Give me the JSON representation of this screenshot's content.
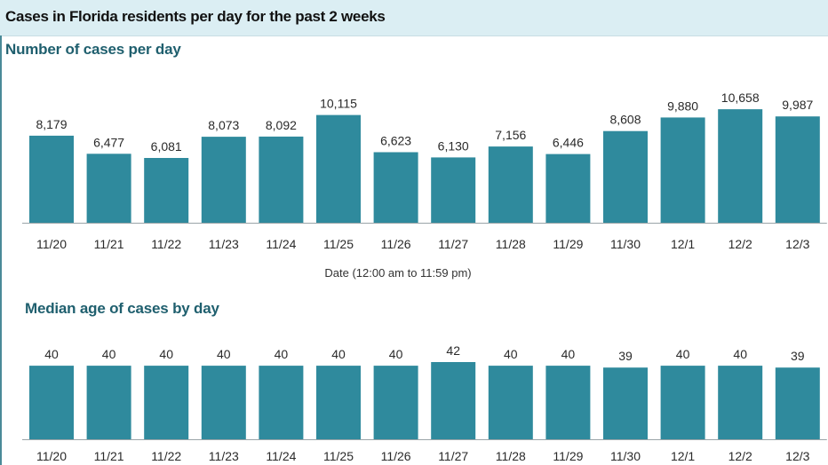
{
  "header": {
    "title": "Cases in Florida residents per day for the past 2 weeks"
  },
  "chart_data": [
    {
      "type": "bar",
      "title": "Number of cases per day",
      "xlabel": "Date (12:00 am to 11:59 pm)",
      "ylabel": "",
      "categories": [
        "11/20",
        "11/21",
        "11/22",
        "11/23",
        "11/24",
        "11/25",
        "11/26",
        "11/27",
        "11/28",
        "11/29",
        "11/30",
        "12/1",
        "12/2",
        "12/3"
      ],
      "value_labels": [
        "8,179",
        "6,477",
        "6,081",
        "8,073",
        "8,092",
        "10,115",
        "6,623",
        "6,130",
        "7,156",
        "6,446",
        "8,608",
        "9,880",
        "10,658",
        "9,987"
      ],
      "values": [
        8179,
        6477,
        6081,
        8073,
        8092,
        10115,
        6623,
        6130,
        7156,
        6446,
        8608,
        9880,
        10658,
        9987
      ],
      "ylim": [
        0,
        11000
      ],
      "grid": false,
      "color": "#2f8a9d"
    },
    {
      "type": "bar",
      "title": "Median age of cases by day",
      "xlabel": "",
      "ylabel": "",
      "categories": [
        "11/20",
        "11/21",
        "11/22",
        "11/23",
        "11/24",
        "11/25",
        "11/26",
        "11/27",
        "11/28",
        "11/29",
        "11/30",
        "12/1",
        "12/2",
        "12/3"
      ],
      "value_labels": [
        "40",
        "40",
        "40",
        "40",
        "40",
        "40",
        "40",
        "42",
        "40",
        "40",
        "39",
        "40",
        "40",
        "39"
      ],
      "values": [
        40,
        40,
        40,
        40,
        40,
        40,
        40,
        42,
        40,
        40,
        39,
        40,
        40,
        39
      ],
      "ylim": [
        0,
        42
      ],
      "grid": false,
      "color": "#2f8a9d"
    }
  ]
}
